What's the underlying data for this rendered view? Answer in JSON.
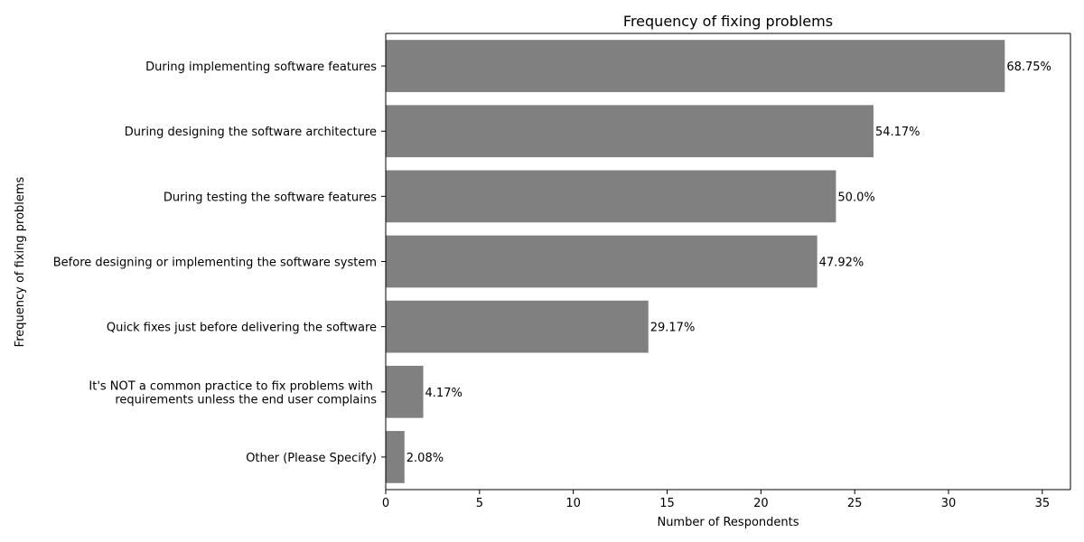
{
  "chart_data": {
    "type": "bar",
    "orientation": "horizontal",
    "title": "Frequency of fixing problems",
    "xlabel": "Number of Respondents",
    "ylabel": "Frequency of fixing problems",
    "categories": [
      "During implementing software features",
      "During designing the software architecture",
      "During testing the software features",
      "Before designing or implementing the software system",
      "Quick fixes just before delivering the software",
      "It's NOT a common practice to fix problems with \nrequirements unless the end user complains",
      "Other (Please Specify)"
    ],
    "values": [
      33,
      26,
      24,
      23,
      14,
      2,
      1
    ],
    "data_labels": [
      "68.75%",
      "54.17%",
      "50.0%",
      "47.92%",
      "29.17%",
      "4.17%",
      "2.08%"
    ],
    "xlim": [
      0,
      36.5
    ],
    "xticks": [
      0,
      5,
      10,
      15,
      20,
      25,
      30,
      35
    ],
    "bar_color": "#808080",
    "grid": false,
    "legend": "none"
  }
}
